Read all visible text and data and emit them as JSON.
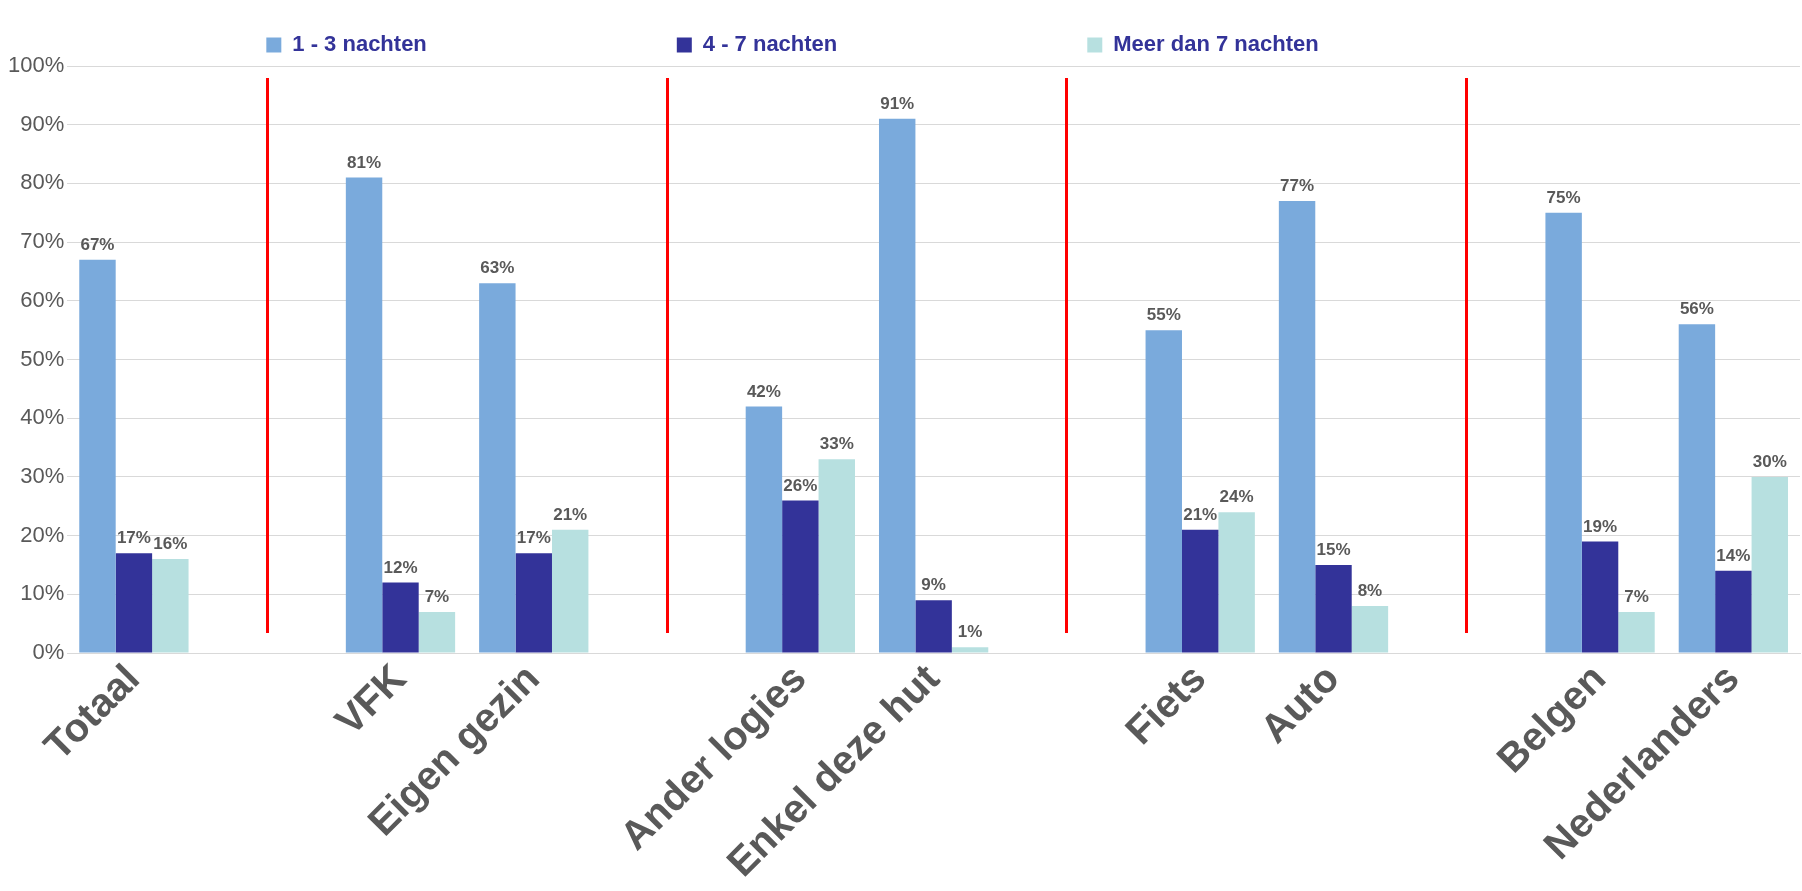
{
  "chart_data": {
    "type": "bar",
    "categories": [
      "Totaal",
      null,
      "VFK",
      "Eigen gezin",
      null,
      "Ander logies",
      "Enkel deze hut",
      null,
      "Fiets",
      "Auto",
      null,
      "Belgen",
      "Nederlanders"
    ],
    "series": [
      {
        "name": "1 - 3 nachten",
        "color": "#7aaadc",
        "values": [
          67,
          null,
          81,
          63,
          null,
          42,
          91,
          null,
          55,
          77,
          null,
          75,
          56
        ],
        "value_labels": [
          "67%",
          null,
          "81%",
          "63%",
          null,
          "42%",
          "91%",
          null,
          "55%",
          "77%",
          null,
          "75%",
          "56%"
        ]
      },
      {
        "name": "4 - 7 nachten",
        "color": "#333399",
        "values": [
          17,
          null,
          12,
          17,
          null,
          26,
          9,
          null,
          21,
          15,
          null,
          19,
          14
        ],
        "value_labels": [
          "17%",
          null,
          "12%",
          "17%",
          null,
          "26%",
          "9%",
          null,
          "21%",
          "15%",
          null,
          "19%",
          "14%"
        ]
      },
      {
        "name": "Meer dan 7 nachten",
        "color": "#b7e0e0",
        "values": [
          16,
          null,
          7,
          21,
          null,
          33,
          1,
          null,
          24,
          8,
          null,
          7,
          30
        ],
        "value_labels": [
          "16%",
          null,
          "7%",
          "21%",
          null,
          "33%",
          "1%",
          null,
          "24%",
          "8%",
          null,
          "7%",
          "30%"
        ]
      }
    ],
    "ylim": [
      0,
      100
    ],
    "yticks": [
      {
        "value": 0,
        "label": "0%"
      },
      {
        "value": 10,
        "label": "10%"
      },
      {
        "value": 20,
        "label": "20%"
      },
      {
        "value": 30,
        "label": "30%"
      },
      {
        "value": 40,
        "label": "40%"
      },
      {
        "value": 50,
        "label": "50%"
      },
      {
        "value": 60,
        "label": "60%"
      },
      {
        "value": 70,
        "label": "70%"
      },
      {
        "value": 80,
        "label": "80%"
      },
      {
        "value": 90,
        "label": "90%"
      },
      {
        "value": 100,
        "label": "100%"
      }
    ],
    "grid": "y",
    "legend": "top"
  }
}
